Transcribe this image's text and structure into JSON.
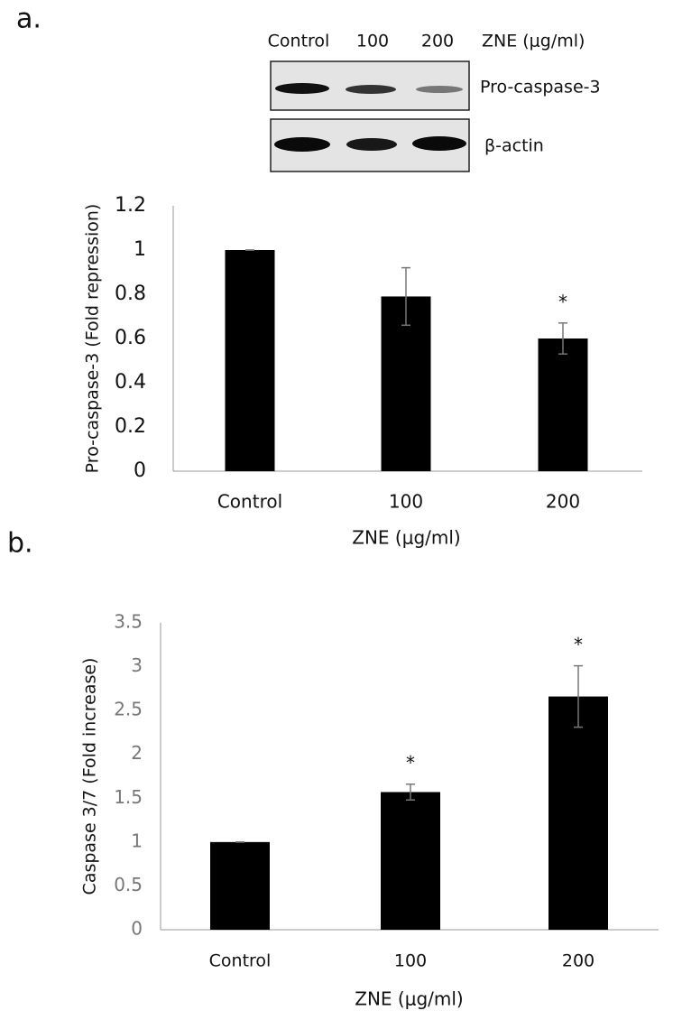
{
  "panel_labels": [
    "a.",
    "b."
  ],
  "blot": {
    "lanes": [
      "Control",
      "100",
      "200"
    ],
    "treatment": "ZNE (μg/ml)",
    "rows": [
      "Pro-caspase-3",
      "β-actin"
    ]
  },
  "chart_data": [
    {
      "type": "bar",
      "categories": [
        "Control",
        "100",
        "200"
      ],
      "values": [
        1,
        0.79,
        0.6
      ],
      "errors": [
        0,
        0.13,
        0.07
      ],
      "annotations": [
        null,
        null,
        "*"
      ],
      "color": "#000000",
      "ylabel": "Pro-caspase-3 (Fold repression)",
      "xlabel": "ZNE (μg/ml)",
      "ylim": [
        0,
        1.2
      ],
      "yticks": [
        0,
        0.2,
        0.4,
        0.6,
        0.8,
        1,
        1.2
      ],
      "grid": false
    },
    {
      "type": "bar",
      "categories": [
        "Control",
        "100",
        "200"
      ],
      "values": [
        1,
        1.57,
        2.66
      ],
      "errors": [
        0,
        0.09,
        0.35
      ],
      "annotations": [
        null,
        "*",
        "*"
      ],
      "color": "#000000",
      "ylabel": "Caspase 3/7 (Fold increase)",
      "xlabel": "ZNE (μg/ml)",
      "ylim": [
        0,
        3.5
      ],
      "yticks": [
        0,
        0.5,
        1,
        1.5,
        2,
        2.5,
        3,
        3.5
      ],
      "grid": false
    }
  ]
}
